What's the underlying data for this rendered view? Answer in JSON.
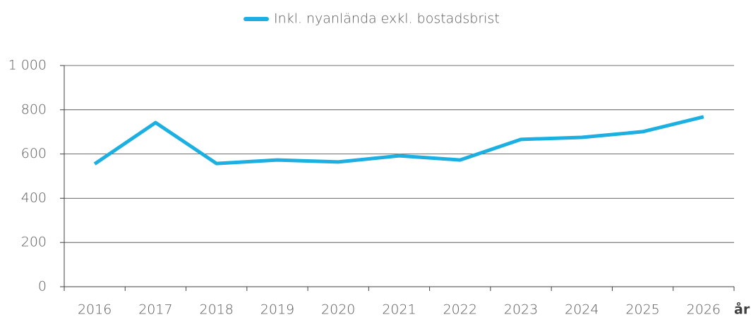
{
  "chart_data": {
    "type": "line",
    "x_label": "år",
    "categories": [
      "2016",
      "2017",
      "2018",
      "2019",
      "2020",
      "2021",
      "2022",
      "2023",
      "2024",
      "2025",
      "2026"
    ],
    "series": [
      {
        "name": "Inkl. nyanlända exkl. bostadsbrist",
        "color": "#1cb0e2",
        "values": [
          555,
          742,
          557,
          573,
          564,
          592,
          573,
          666,
          675,
          701,
          768
        ]
      }
    ],
    "ylim": [
      0,
      1000
    ],
    "yticks": [
      0,
      200,
      400,
      600,
      800,
      {
        "value": 1000,
        "label": "1 000"
      }
    ],
    "grid": true,
    "legend": "top"
  }
}
